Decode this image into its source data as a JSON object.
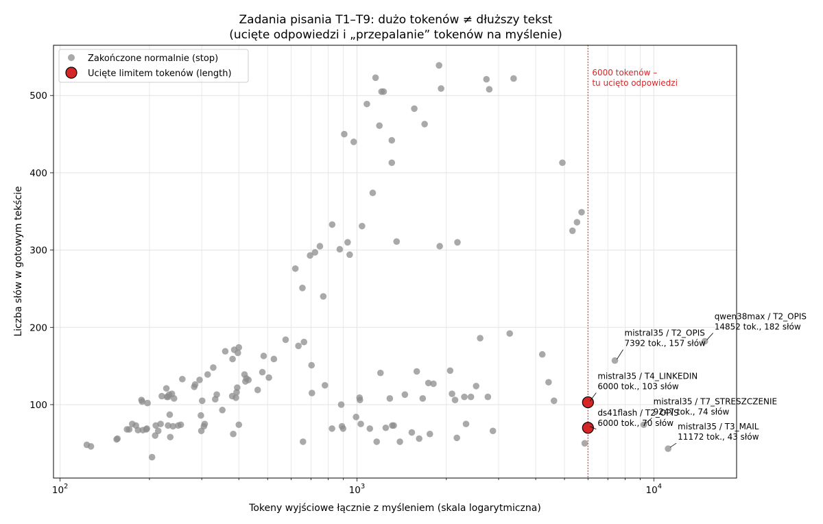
{
  "chart_data": {
    "type": "scatter",
    "title": [
      "Zadania pisania T1–T9: dużo tokenów ≠ dłuższy tekst",
      "(ucięte odpowiedzi i „przepalanie” tokenów na myślenie)"
    ],
    "xlabel": "Tokeny wyjściowe łącznie z myśleniem (skala logarytmiczna)",
    "ylabel": "Liczba słów w gotowym tekście",
    "xscale": "log",
    "xlim": [
      95,
      19000
    ],
    "ylim": [
      5,
      565
    ],
    "x_ticks": [
      {
        "value": 100,
        "base": "10",
        "exp": "2"
      },
      {
        "value": 1000,
        "base": "10",
        "exp": "3"
      },
      {
        "value": 10000,
        "base": "10",
        "exp": "4"
      }
    ],
    "y_ticks": [
      100,
      200,
      300,
      400,
      500
    ],
    "grid": true,
    "legend_position": "top-left",
    "threshold": {
      "x": 6000,
      "label": [
        "6000 tokenów –",
        "tu ucięto odpowiedzi"
      ],
      "color": "#d62728"
    },
    "series": [
      {
        "name": "Zakończone normalnie (stop)",
        "color": "#8c8c8c",
        "points": [
          [
            123,
            48
          ],
          [
            127,
            46
          ],
          [
            155,
            55
          ],
          [
            156,
            56
          ],
          [
            168,
            68
          ],
          [
            171,
            68
          ],
          [
            175,
            75
          ],
          [
            180,
            73
          ],
          [
            183,
            67
          ],
          [
            188,
            106
          ],
          [
            189,
            104
          ],
          [
            190,
            67
          ],
          [
            195,
            68
          ],
          [
            196,
            69
          ],
          [
            197,
            102
          ],
          [
            204,
            32
          ],
          [
            209,
            60
          ],
          [
            210,
            73
          ],
          [
            214,
            66
          ],
          [
            218,
            75
          ],
          [
            220,
            111
          ],
          [
            228,
            121
          ],
          [
            229,
            110
          ],
          [
            231,
            110
          ],
          [
            231,
            73
          ],
          [
            233,
            113
          ],
          [
            234,
            87
          ],
          [
            235,
            58
          ],
          [
            238,
            114
          ],
          [
            240,
            72
          ],
          [
            242,
            108
          ],
          [
            250,
            73
          ],
          [
            255,
            74
          ],
          [
            258,
            133
          ],
          [
            283,
            123
          ],
          [
            285,
            126
          ],
          [
            295,
            132
          ],
          [
            298,
            86
          ],
          [
            299,
            66
          ],
          [
            301,
            105
          ],
          [
            305,
            72
          ],
          [
            307,
            75
          ],
          [
            314,
            139
          ],
          [
            328,
            148
          ],
          [
            333,
            107
          ],
          [
            337,
            113
          ],
          [
            352,
            93
          ],
          [
            360,
            169
          ],
          [
            380,
            111
          ],
          [
            381,
            159
          ],
          [
            383,
            62
          ],
          [
            386,
            171
          ],
          [
            391,
            109
          ],
          [
            393,
            116
          ],
          [
            395,
            122
          ],
          [
            397,
            167
          ],
          [
            400,
            174
          ],
          [
            400,
            74
          ],
          [
            418,
            139
          ],
          [
            421,
            130
          ],
          [
            424,
            134
          ],
          [
            431,
            132
          ],
          [
            463,
            119
          ],
          [
            480,
            142
          ],
          [
            485,
            163
          ],
          [
            505,
            135
          ],
          [
            525,
            159
          ],
          [
            575,
            184
          ],
          [
            620,
            276
          ],
          [
            635,
            176
          ],
          [
            655,
            251
          ],
          [
            663,
            181
          ],
          [
            658,
            52
          ],
          [
            695,
            293
          ],
          [
            703,
            151
          ],
          [
            705,
            115
          ],
          [
            722,
            297
          ],
          [
            750,
            305
          ],
          [
            770,
            240
          ],
          [
            780,
            125
          ],
          [
            825,
            333
          ],
          [
            824,
            69
          ],
          [
            875,
            301
          ],
          [
            885,
            100
          ],
          [
            890,
            72
          ],
          [
            898,
            69
          ],
          [
            906,
            450
          ],
          [
            930,
            310
          ],
          [
            945,
            294
          ],
          [
            975,
            440
          ],
          [
            993,
            84
          ],
          [
            1020,
            109
          ],
          [
            1023,
            106
          ],
          [
            1030,
            75
          ],
          [
            1040,
            331
          ],
          [
            1080,
            489
          ],
          [
            1105,
            69
          ],
          [
            1130,
            374
          ],
          [
            1155,
            523
          ],
          [
            1165,
            52
          ],
          [
            1190,
            461
          ],
          [
            1200,
            141
          ],
          [
            1210,
            505
          ],
          [
            1230,
            505
          ],
          [
            1250,
            70
          ],
          [
            1290,
            108
          ],
          [
            1310,
            442
          ],
          [
            1310,
            413
          ],
          [
            1315,
            73
          ],
          [
            1330,
            73
          ],
          [
            1360,
            311
          ],
          [
            1395,
            52
          ],
          [
            1450,
            113
          ],
          [
            1530,
            64
          ],
          [
            1560,
            483
          ],
          [
            1590,
            143
          ],
          [
            1620,
            56
          ],
          [
            1665,
            108
          ],
          [
            1690,
            463
          ],
          [
            1740,
            128
          ],
          [
            1760,
            62
          ],
          [
            1810,
            127
          ],
          [
            1890,
            539
          ],
          [
            1900,
            305
          ],
          [
            1920,
            509
          ],
          [
            2060,
            144
          ],
          [
            2090,
            114
          ],
          [
            2140,
            106
          ],
          [
            2170,
            57
          ],
          [
            2180,
            310
          ],
          [
            2300,
            110
          ],
          [
            2330,
            75
          ],
          [
            2420,
            110
          ],
          [
            2520,
            124
          ],
          [
            2600,
            186
          ],
          [
            2730,
            521
          ],
          [
            2760,
            110
          ],
          [
            2790,
            508
          ],
          [
            2870,
            66
          ],
          [
            3270,
            192
          ],
          [
            3370,
            522
          ],
          [
            4210,
            165
          ],
          [
            4420,
            129
          ],
          [
            4610,
            105
          ],
          [
            4920,
            413
          ],
          [
            5320,
            325
          ],
          [
            5510,
            336
          ],
          [
            5710,
            349
          ],
          [
            5850,
            50
          ]
        ]
      },
      {
        "name": "Ucięte limitem tokenów (length)",
        "color": "#d62728",
        "points": [
          [
            6000,
            103
          ],
          [
            6000,
            70
          ]
        ]
      }
    ],
    "annotations": [
      {
        "point": [
          14852,
          182
        ],
        "text": [
          "qwen38max / T2_OPIS",
          "14852 tok., 182 słów"
        ]
      },
      {
        "point": [
          7392,
          157
        ],
        "text": [
          "mistral35 / T2_OPIS",
          "7392 tok., 157 słów"
        ]
      },
      {
        "point": [
          6000,
          103
        ],
        "text": [
          "mistral35 / T4_LINKEDIN",
          "6000 tok., 103 słów"
        ]
      },
      {
        "point": [
          6000,
          70
        ],
        "text": [
          "ds41flash / T2_OPIS",
          "6000 tok., 70 słów"
        ]
      },
      {
        "point": [
          9247,
          74
        ],
        "text": [
          "mistral35 / T7_STRESZCZENIE",
          "9247 tok., 74 słów"
        ]
      },
      {
        "point": [
          11172,
          43
        ],
        "text": [
          "mistral35 / T3_MAIL",
          "11172 tok., 43 słów"
        ]
      }
    ]
  }
}
